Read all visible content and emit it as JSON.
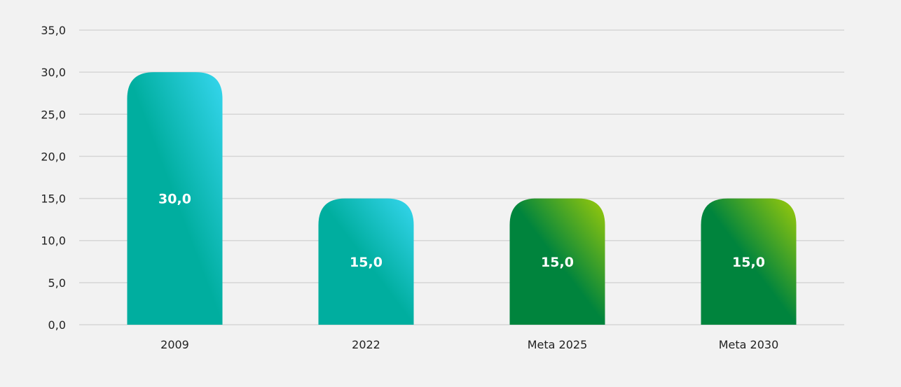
{
  "chart_data": {
    "type": "bar",
    "title": "",
    "xlabel": "",
    "ylabel": "",
    "categories": [
      "2009",
      "2022",
      "Meta 2025",
      "Meta 2030"
    ],
    "values": [
      30.0,
      15.0,
      15.0,
      15.0
    ],
    "value_labels": [
      "30,0",
      "15,0",
      "15,0",
      "15,0"
    ],
    "ylim": [
      0,
      35
    ],
    "y_ticks": [
      0,
      5,
      10,
      15,
      20,
      25,
      30,
      35
    ],
    "y_tick_labels": [
      "0,0",
      "5,0",
      "10,0",
      "15,0",
      "20,0",
      "25,0",
      "30,0",
      "35,0"
    ],
    "grid": true,
    "legend": "none",
    "bar_colors": [
      {
        "top": "#36d6ef",
        "bottom": "#00ae9f"
      },
      {
        "top": "#36d6ef",
        "bottom": "#00ae9f"
      },
      {
        "top": "#9ccb0a",
        "bottom": "#00843d"
      },
      {
        "top": "#9ccb0a",
        "bottom": "#00843d"
      }
    ]
  }
}
